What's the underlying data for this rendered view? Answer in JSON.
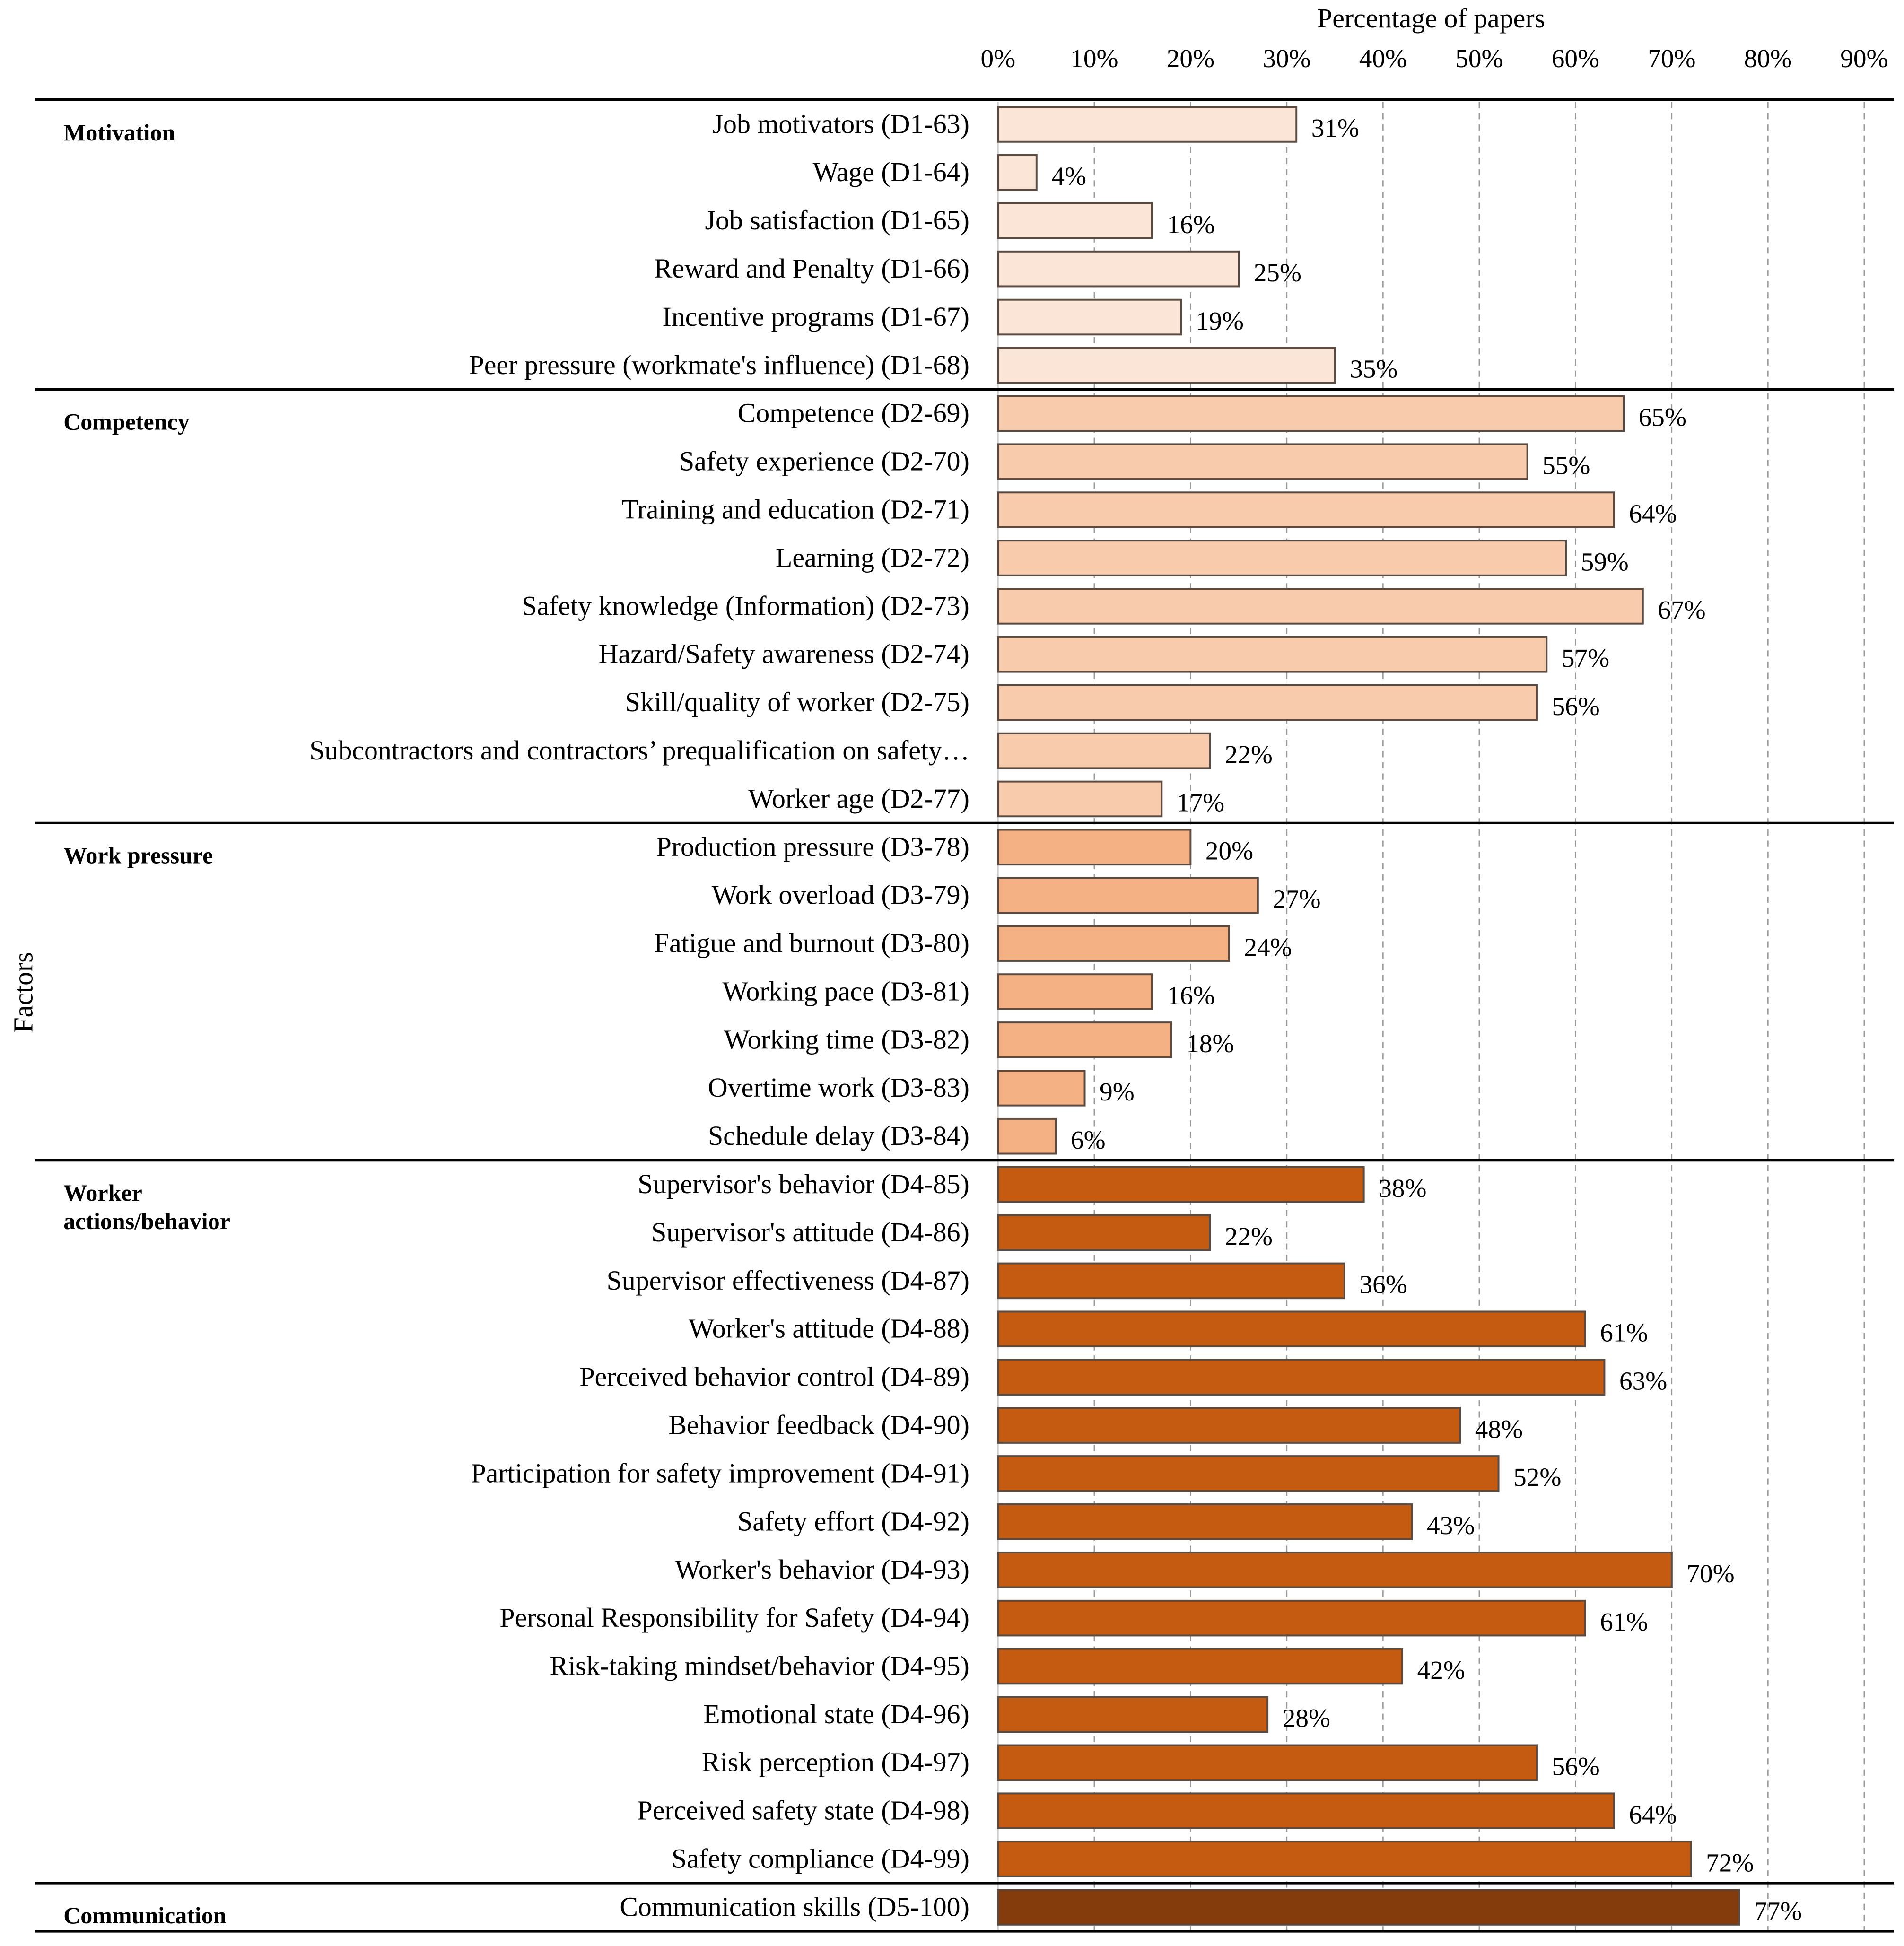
{
  "chart_data": {
    "type": "bar",
    "orientation": "horizontal",
    "title": "",
    "xlabel": "Percentage of papers",
    "ylabel": "Factors",
    "xlim": [
      0,
      90
    ],
    "xticks": [
      "0%",
      "10%",
      "20%",
      "30%",
      "40%",
      "50%",
      "60%",
      "70%",
      "80%",
      "90%"
    ],
    "grid": "vertical dashed",
    "groups": [
      {
        "name": "Motivation",
        "color": "#FBE5D6",
        "items": [
          {
            "label": "Job motivators (D1-63)",
            "value": 31
          },
          {
            "label": "Wage (D1-64)",
            "value": 4
          },
          {
            "label": "Job satisfaction (D1-65)",
            "value": 16
          },
          {
            "label": "Reward and Penalty (D1-66)",
            "value": 25
          },
          {
            "label": "Incentive programs (D1-67)",
            "value": 19
          },
          {
            "label": "Peer pressure (workmate's influence) (D1-68)",
            "value": 35
          }
        ]
      },
      {
        "name": "Competency",
        "color": "#F8CBAD",
        "items": [
          {
            "label": "Competence (D2-69)",
            "value": 65
          },
          {
            "label": "Safety experience (D2-70)",
            "value": 55
          },
          {
            "label": "Training and education (D2-71)",
            "value": 64
          },
          {
            "label": "Learning (D2-72)",
            "value": 59
          },
          {
            "label": "Safety knowledge (Information) (D2-73)",
            "value": 67
          },
          {
            "label": "Hazard/Safety awareness (D2-74)",
            "value": 57
          },
          {
            "label": "Skill/quality of worker (D2-75)",
            "value": 56
          },
          {
            "label": "Subcontractors and contractors’ prequalification on safety…",
            "value": 22
          },
          {
            "label": "Worker age (D2-77)",
            "value": 17
          }
        ]
      },
      {
        "name": "Work pressure",
        "color": "#F4B183",
        "items": [
          {
            "label": "Production pressure (D3-78)",
            "value": 20
          },
          {
            "label": "Work overload (D3-79)",
            "value": 27
          },
          {
            "label": "Fatigue and burnout (D3-80)",
            "value": 24
          },
          {
            "label": "Working pace (D3-81)",
            "value": 16
          },
          {
            "label": "Working time (D3-82)",
            "value": 18
          },
          {
            "label": "Overtime work (D3-83)",
            "value": 9
          },
          {
            "label": "Schedule delay (D3-84)",
            "value": 6
          }
        ]
      },
      {
        "name": "Worker actions/behavior",
        "name_lines": [
          "Worker",
          "actions/behavior"
        ],
        "color": "#C55A11",
        "items": [
          {
            "label": "Supervisor's behavior (D4-85)",
            "value": 38
          },
          {
            "label": "Supervisor's attitude (D4-86)",
            "value": 22
          },
          {
            "label": "Supervisor effectiveness (D4-87)",
            "value": 36
          },
          {
            "label": "Worker's attitude (D4-88)",
            "value": 61
          },
          {
            "label": "Perceived behavior control (D4-89)",
            "value": 63
          },
          {
            "label": "Behavior feedback (D4-90)",
            "value": 48
          },
          {
            "label": "Participation for safety improvement (D4-91)",
            "value": 52
          },
          {
            "label": "Safety effort (D4-92)",
            "value": 43
          },
          {
            "label": "Worker's behavior (D4-93)",
            "value": 70
          },
          {
            "label": "Personal Responsibility for Safety (D4-94)",
            "value": 61
          },
          {
            "label": "Risk-taking mindset/behavior (D4-95)",
            "value": 42
          },
          {
            "label": "Emotional state (D4-96)",
            "value": 28
          },
          {
            "label": "Risk perception (D4-97)",
            "value": 56
          },
          {
            "label": "Perceived safety state (D4-98)",
            "value": 64
          },
          {
            "label": "Safety compliance (D4-99)",
            "value": 72
          }
        ]
      },
      {
        "name": "Communication",
        "color": "#843C0C",
        "items": [
          {
            "label": "Communication skills (D5-100)",
            "value": 77
          }
        ]
      }
    ]
  }
}
